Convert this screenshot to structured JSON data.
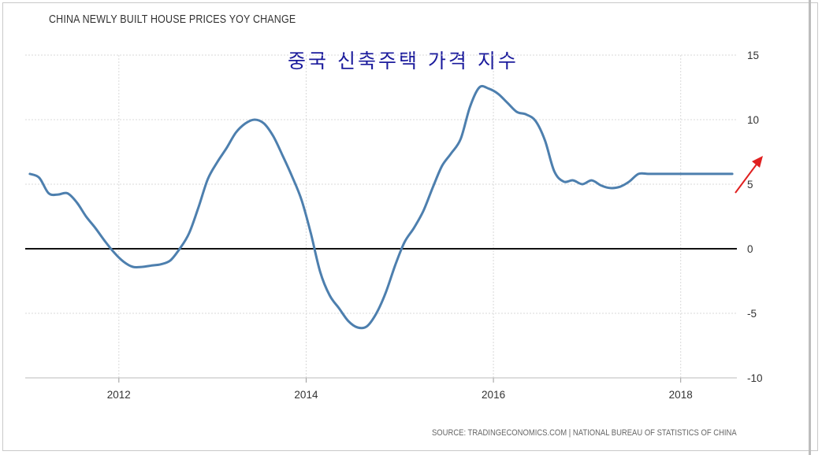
{
  "chart_data": {
    "type": "line",
    "title": "CHINA NEWLY BUILT HOUSE PRICES YOY CHANGE",
    "annotation": "중국 신축주택 가격 지수",
    "source": "SOURCE: TRADINGECONOMICS.COM | NATIONAL BUREAU OF STATISTICS OF CHINA",
    "xlabel": "",
    "ylabel": "",
    "xlim": [
      2011.0,
      2018.6
    ],
    "ylim": [
      -10,
      15
    ],
    "y_ticks": [
      "15",
      "10",
      "5",
      "0",
      "-5",
      "-10"
    ],
    "x_ticks": [
      "2012",
      "2014",
      "2016",
      "2018"
    ],
    "grid": true,
    "zero_line": true,
    "line_color": "#4d7fae",
    "arrow_color": "#e02020",
    "series": [
      {
        "x": [
          2011.05,
          2011.15,
          2011.25,
          2011.35,
          2011.45,
          2011.55,
          2011.65,
          2011.75,
          2011.85,
          2011.95,
          2012.05,
          2012.15,
          2012.25,
          2012.35,
          2012.45,
          2012.55,
          2012.65,
          2012.75,
          2012.85,
          2012.95,
          2013.05,
          2013.15,
          2013.25,
          2013.35,
          2013.45,
          2013.55,
          2013.65,
          2013.75,
          2013.85,
          2013.95,
          2014.05,
          2014.15,
          2014.25,
          2014.35,
          2014.45,
          2014.55,
          2014.65,
          2014.75,
          2014.85,
          2014.95,
          2015.05,
          2015.15,
          2015.25,
          2015.35,
          2015.45,
          2015.55,
          2015.65,
          2015.75,
          2015.85,
          2015.95,
          2016.05,
          2016.15,
          2016.25,
          2016.35,
          2016.45,
          2016.55,
          2016.65,
          2016.75,
          2016.85,
          2016.95,
          2017.05,
          2017.15,
          2017.25,
          2017.35,
          2017.45,
          2017.55,
          2017.65,
          2017.75,
          2017.85,
          2017.95,
          2018.05,
          2018.15,
          2018.25,
          2018.35,
          2018.45,
          2018.55
        ],
        "y": [
          5.8,
          5.5,
          4.3,
          4.2,
          4.3,
          3.6,
          2.5,
          1.6,
          0.6,
          -0.3,
          -1.0,
          -1.4,
          -1.4,
          -1.3,
          -1.2,
          -0.9,
          0.0,
          1.2,
          3.2,
          5.4,
          6.7,
          7.8,
          9.0,
          9.7,
          10.0,
          9.7,
          8.7,
          7.2,
          5.6,
          3.8,
          1.2,
          -1.8,
          -3.6,
          -4.6,
          -5.6,
          -6.1,
          -6.0,
          -5.0,
          -3.4,
          -1.3,
          0.5,
          1.6,
          2.9,
          4.7,
          6.4,
          7.4,
          8.5,
          11.0,
          12.5,
          12.4,
          12.0,
          11.3,
          10.6,
          10.4,
          9.9,
          8.4,
          6.0,
          5.2,
          5.3,
          5.0,
          5.3,
          4.9,
          4.7,
          4.8,
          5.2,
          5.8,
          5.8,
          5.8,
          5.8,
          5.8,
          5.8,
          5.8,
          5.8,
          5.8,
          5.8,
          5.8
        ]
      }
    ]
  }
}
